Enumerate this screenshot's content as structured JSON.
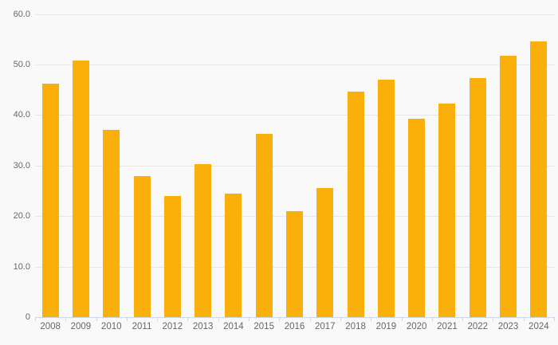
{
  "chart_data": {
    "type": "bar",
    "title": "",
    "xlabel": "",
    "ylabel": "",
    "categories": [
      "2008",
      "2009",
      "2010",
      "2011",
      "2012",
      "2013",
      "2014",
      "2015",
      "2016",
      "2017",
      "2018",
      "2019",
      "2020",
      "2021",
      "2022",
      "2023",
      "2024"
    ],
    "values": [
      46.2,
      50.8,
      37.1,
      27.9,
      24.0,
      30.3,
      24.5,
      36.2,
      20.9,
      25.6,
      44.6,
      47.0,
      39.2,
      42.3,
      47.3,
      51.7,
      54.5
    ],
    "ylim": [
      0,
      60
    ],
    "ytick_values": [
      0,
      10,
      20,
      30,
      40,
      50,
      60
    ],
    "ytick_labels": [
      "0",
      "10.0",
      "20.0",
      "30.0",
      "40.0",
      "50.0",
      "60.0"
    ],
    "grid": "horizontal",
    "legend": false,
    "colors": {
      "bar": "#FAAF0A",
      "background": "#F9F9F9",
      "gridline": "#E6E6E6",
      "axis_line": "#CCD6EB",
      "tick": "#CCD6EB",
      "label_text": "#666666"
    }
  }
}
